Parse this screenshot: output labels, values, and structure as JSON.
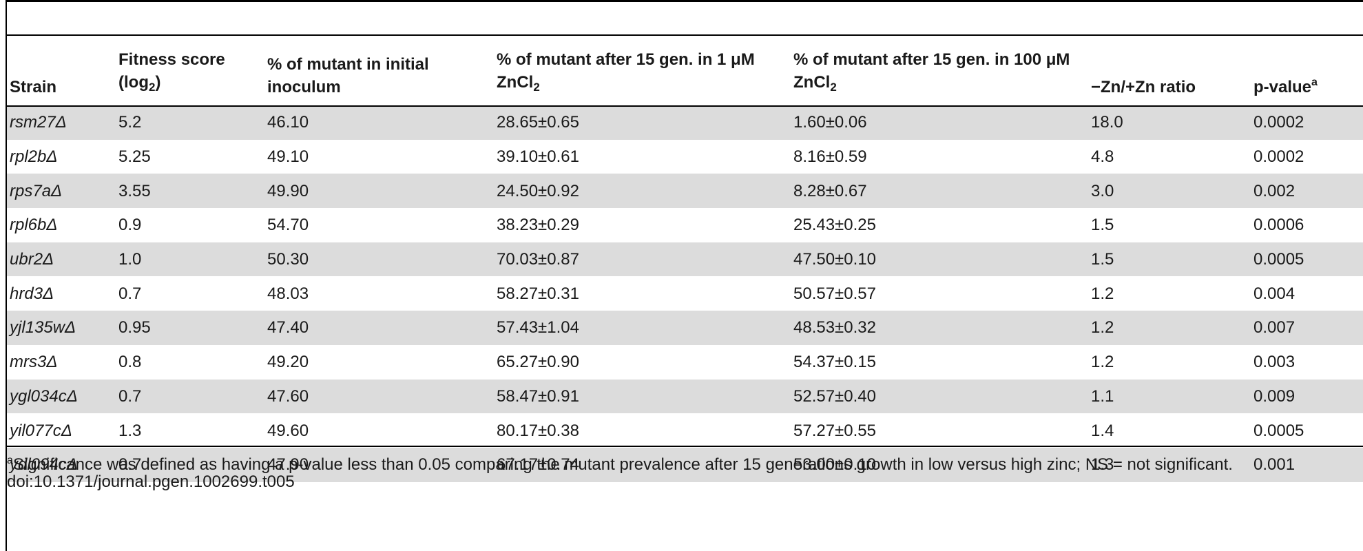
{
  "table": {
    "headers": {
      "strain": "Strain",
      "fitness": {
        "text": "Fitness score (log",
        "sub": "2",
        "after": ")"
      },
      "initial": "% of mutant in initial inoculum",
      "low_zinc": {
        "text": "% of mutant after 15 gen. in 1 μM ZnCl",
        "sub": "2"
      },
      "high_zinc": {
        "text": "% of mutant after 15 gen. in 100 μM ZnCl",
        "sub": "2"
      },
      "ratio": "−Zn/+Zn ratio",
      "pvalue": {
        "text": "p-value",
        "sup": "a"
      }
    },
    "rows": [
      {
        "strain": "rsm27Δ",
        "fitness": "5.2",
        "initial": "46.10",
        "low_zinc": "28.65±0.65",
        "high_zinc": "1.60±0.06",
        "ratio": "18.0",
        "pvalue": "0.0002"
      },
      {
        "strain": "rpl2bΔ",
        "fitness": "5.25",
        "initial": "49.10",
        "low_zinc": "39.10±0.61",
        "high_zinc": "8.16±0.59",
        "ratio": "4.8",
        "pvalue": "0.0002"
      },
      {
        "strain": "rps7aΔ",
        "fitness": "3.55",
        "initial": "49.90",
        "low_zinc": "24.50±0.92",
        "high_zinc": "8.28±0.67",
        "ratio": "3.0",
        "pvalue": "0.002"
      },
      {
        "strain": "rpl6bΔ",
        "fitness": "0.9",
        "initial": "54.70",
        "low_zinc": "38.23±0.29",
        "high_zinc": "25.43±0.25",
        "ratio": "1.5",
        "pvalue": "0.0006"
      },
      {
        "strain": "ubr2Δ",
        "fitness": "1.0",
        "initial": "50.30",
        "low_zinc": "70.03±0.87",
        "high_zinc": "47.50±0.10",
        "ratio": "1.5",
        "pvalue": "0.0005"
      },
      {
        "strain": "hrd3Δ",
        "fitness": "0.7",
        "initial": "48.03",
        "low_zinc": "58.27±0.31",
        "high_zinc": "50.57±0.57",
        "ratio": "1.2",
        "pvalue": "0.004"
      },
      {
        "strain": "yjl135wΔ",
        "fitness": "0.95",
        "initial": "47.40",
        "low_zinc": "57.43±1.04",
        "high_zinc": "48.53±0.32",
        "ratio": "1.2",
        "pvalue": "0.007"
      },
      {
        "strain": "mrs3Δ",
        "fitness": "0.8",
        "initial": "49.20",
        "low_zinc": "65.27±0.90",
        "high_zinc": "54.37±0.15",
        "ratio": "1.2",
        "pvalue": "0.003"
      },
      {
        "strain": "ygl034cΔ",
        "fitness": "0.7",
        "initial": "47.60",
        "low_zinc": "58.47±0.91",
        "high_zinc": "52.57±0.40",
        "ratio": "1.1",
        "pvalue": "0.009"
      },
      {
        "strain": "yil077cΔ",
        "fitness": "1.3",
        "initial": "49.60",
        "low_zinc": "80.17±0.38",
        "high_zinc": "57.27±0.55",
        "ratio": "1.4",
        "pvalue": "0.0005"
      },
      {
        "strain": "ydl094cΔ",
        "fitness": "0.7",
        "initial": "47.90",
        "low_zinc": "67.17±0.74",
        "high_zinc": "53.00±0.10",
        "ratio": "1.3",
        "pvalue": "0.001"
      }
    ]
  },
  "footnote": {
    "marker": "a",
    "text": "Significance was defined as having a p-value less than 0.05 comparing the mutant prevalence after 15 generations growth in low versus high zinc; NS = not significant."
  },
  "doi": "doi:10.1371/journal.pgen.1002699.t005"
}
